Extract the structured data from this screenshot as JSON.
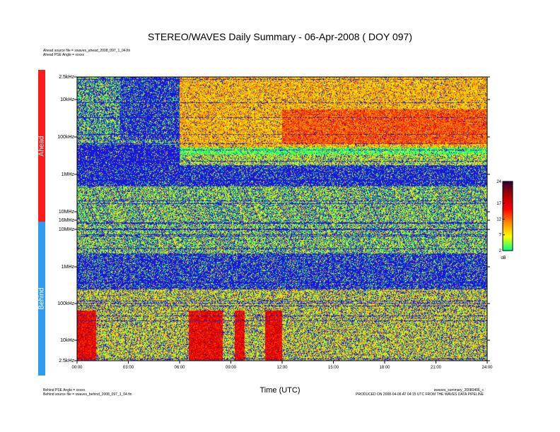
{
  "title": "STEREO/WAVES Daily Summary - 06-Apr-2008 ( DOY 097)",
  "ahead": {
    "source_file": "Ahead source file = swaves_ahead_2008_097_1_04.fin",
    "pse_angle": "Ahead PSE Angle = xxxxx",
    "label": "Ahead"
  },
  "behind": {
    "pse_angle": "Behind PSE Angle = xxxxx",
    "source_file": "Behind source file = swaves_behind_2008_097_1_04.fin",
    "label": "Behind"
  },
  "footer": {
    "filename": "swaves_summary_20080406_c",
    "production": "PRODUCED ON 2008-04-08 AT 04:15 UTC FROM THE WAVES DATA PIPELINE"
  },
  "colors": {
    "ahead_bar": "#ff1a1a",
    "behind_bar": "#2e9cf0",
    "colormap": [
      "#00ff7f",
      "#ffff00",
      "#ff8c00",
      "#ff0000",
      "#b00000",
      "#300030"
    ]
  },
  "chart_data": {
    "type": "heatmap",
    "title": "STEREO/WAVES Daily Summary - 06-Apr-2008 ( DOY 097)",
    "xlabel": "Time (UTC)",
    "x_ticks": [
      "00:00",
      "03:00",
      "06:00",
      "09:00",
      "12:00",
      "15:00",
      "18:00",
      "21:00",
      "24:00"
    ],
    "x_range_hours": [
      0,
      24
    ],
    "panels": [
      {
        "name": "Ahead",
        "y_ticks": [
          "2.5kHz",
          "10kHz",
          "100kHz",
          "1MHz",
          "10MHz",
          "16MHz"
        ],
        "y_tick_values_khz": [
          2.5,
          10,
          100,
          1000,
          10000,
          16000
        ],
        "y_scale": "log",
        "y_orientation": "frequency decreasing downward"
      },
      {
        "name": "Behind",
        "y_ticks": [
          "10MHz",
          "1MHz",
          "100kHz",
          "10kHz",
          "2.5kHz"
        ],
        "y_tick_values_khz": [
          10000,
          1000,
          100,
          10,
          2.5
        ],
        "y_scale": "log",
        "y_orientation": "frequency decreasing downward"
      }
    ],
    "colorbar": {
      "label": "dB",
      "ticks": [
        24,
        17,
        12,
        7,
        2
      ],
      "range": [
        2,
        24
      ]
    },
    "features": [
      {
        "panel": "Ahead",
        "description": "enhanced low-frequency emission onset",
        "time_range_hours": [
          6.0,
          24.0
        ]
      },
      {
        "panel": "Ahead",
        "description": "strong intensity region",
        "time_range_hours": [
          12.0,
          24.0
        ]
      },
      {
        "panel": "Behind",
        "description": "bursts near lowest frequencies",
        "times_hours": [
          0.5,
          7.5,
          11.5
        ]
      }
    ]
  }
}
